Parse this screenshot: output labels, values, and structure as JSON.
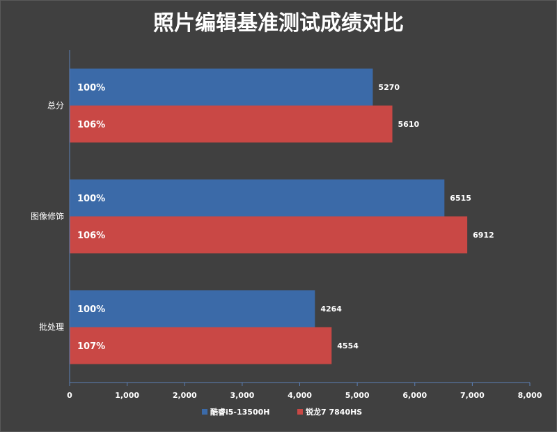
{
  "chart_data": {
    "type": "bar",
    "orientation": "horizontal",
    "title": "照片编辑基准测试成绩对比",
    "categories": [
      "总分",
      "图像修饰",
      "批处理"
    ],
    "series": [
      {
        "name": "酷睿i5-13500H",
        "color": "#3b6aa8",
        "values": [
          5270,
          6515,
          4264
        ],
        "percent_labels": [
          "100%",
          "100%",
          "100%"
        ]
      },
      {
        "name": "锐龙7 7840HS",
        "color": "#c94845",
        "values": [
          5610,
          6912,
          4554
        ],
        "percent_labels": [
          "106%",
          "106%",
          "107%"
        ]
      }
    ],
    "xlim": [
      0,
      8000
    ],
    "xticks": [
      0,
      1000,
      2000,
      3000,
      4000,
      5000,
      6000,
      7000,
      8000
    ],
    "xtick_labels": [
      "0",
      "1,000",
      "2,000",
      "3,000",
      "4,000",
      "5,000",
      "6,000",
      "7,000",
      "8,000"
    ],
    "grid": false,
    "legend_position": "bottom"
  }
}
